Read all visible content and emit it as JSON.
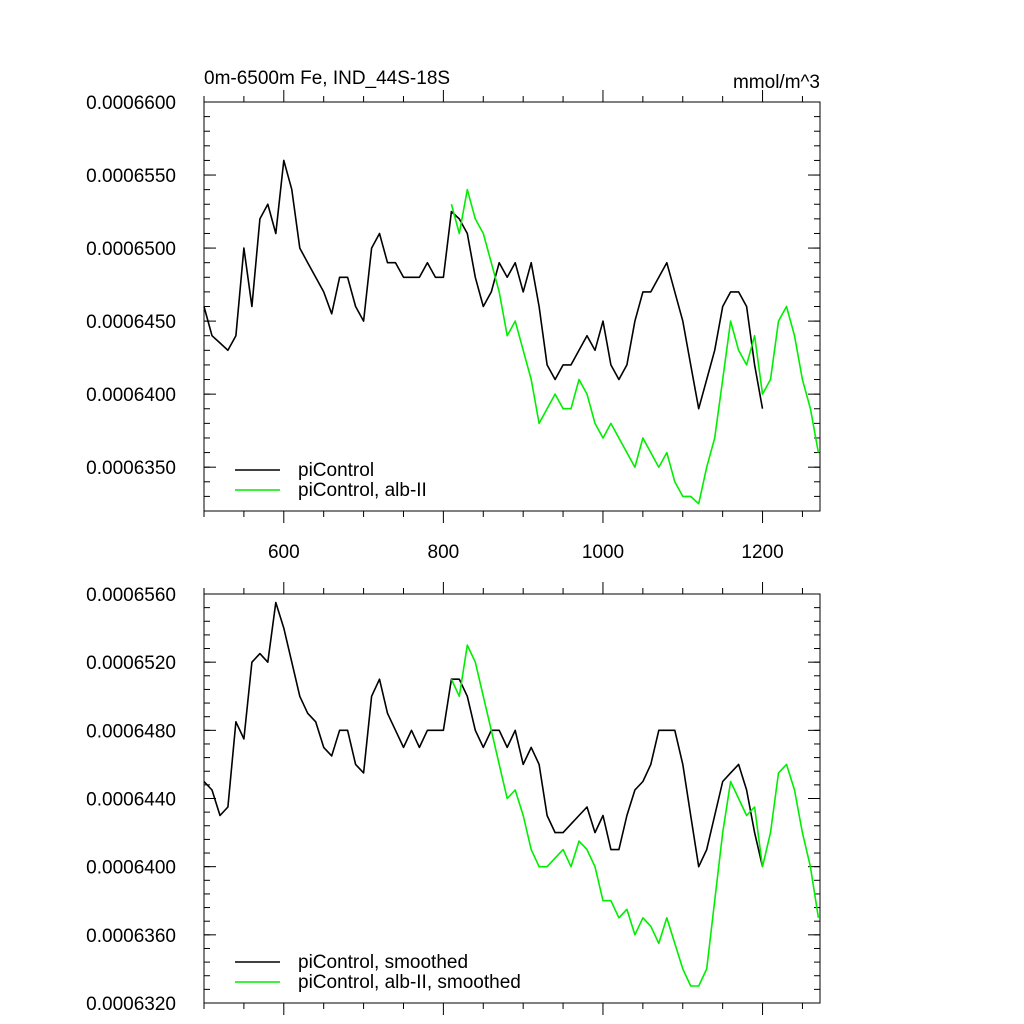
{
  "chart_data": [
    {
      "type": "line",
      "title": "0m-6500m Fe, IND_44S-18S",
      "units": "mmol/m^3",
      "xlim": [
        500,
        1272
      ],
      "ylim": [
        0.000632,
        0.00066
      ],
      "xticks": [
        600,
        800,
        1000,
        1200
      ],
      "xtick_labels": [
        "600",
        "800",
        "1000",
        "1200"
      ],
      "yticks": [
        0.000635,
        0.00064,
        0.000645,
        0.00065,
        0.000655,
        0.00066
      ],
      "ytick_labels": [
        "0.0006350",
        "0.0006400",
        "0.0006450",
        "0.0006500",
        "0.0006550",
        "0.0006600"
      ],
      "legend_position": "bottom-left",
      "series": [
        {
          "name": "piControl",
          "color": "#000000",
          "x": [
            500,
            510,
            520,
            530,
            540,
            550,
            560,
            570,
            580,
            590,
            600,
            610,
            620,
            630,
            640,
            650,
            660,
            670,
            680,
            690,
            700,
            710,
            720,
            730,
            740,
            750,
            760,
            770,
            780,
            790,
            800,
            810,
            820,
            830,
            840,
            850,
            860,
            870,
            880,
            890,
            900,
            910,
            920,
            930,
            940,
            950,
            960,
            970,
            980,
            990,
            1000,
            1010,
            1020,
            1030,
            1040,
            1050,
            1060,
            1070,
            1080,
            1090,
            1100,
            1110,
            1120,
            1130,
            1140,
            1150,
            1160,
            1170,
            1180,
            1190,
            1200
          ],
          "y": [
            0.000646,
            0.000644,
            0.0006435,
            0.000643,
            0.000644,
            0.00065,
            0.000646,
            0.000652,
            0.000653,
            0.000651,
            0.000656,
            0.000654,
            0.00065,
            0.000649,
            0.000648,
            0.000647,
            0.0006455,
            0.000648,
            0.000648,
            0.000646,
            0.000645,
            0.00065,
            0.000651,
            0.000649,
            0.000649,
            0.000648,
            0.000648,
            0.000648,
            0.000649,
            0.000648,
            0.000648,
            0.0006525,
            0.000652,
            0.000651,
            0.000648,
            0.000646,
            0.000647,
            0.000649,
            0.000648,
            0.000649,
            0.000647,
            0.000649,
            0.000646,
            0.000642,
            0.000641,
            0.000642,
            0.000642,
            0.000643,
            0.000644,
            0.000643,
            0.000645,
            0.000642,
            0.000641,
            0.000642,
            0.000645,
            0.000647,
            0.000647,
            0.000648,
            0.000649,
            0.000647,
            0.000645,
            0.000642,
            0.000639,
            0.000641,
            0.000643,
            0.000646,
            0.000647,
            0.000647,
            0.000646,
            0.000642,
            0.000639
          ]
        },
        {
          "name": "piControl, alb-II",
          "color": "#00ee00",
          "x": [
            810,
            820,
            830,
            840,
            850,
            860,
            870,
            880,
            890,
            900,
            910,
            920,
            930,
            940,
            950,
            960,
            970,
            980,
            990,
            1000,
            1010,
            1020,
            1030,
            1040,
            1050,
            1060,
            1070,
            1080,
            1090,
            1100,
            1110,
            1120,
            1130,
            1140,
            1150,
            1160,
            1170,
            1180,
            1190,
            1200,
            1210,
            1220,
            1230,
            1240,
            1250,
            1260,
            1270
          ],
          "y": [
            0.000653,
            0.000651,
            0.000654,
            0.000652,
            0.000651,
            0.000649,
            0.000647,
            0.000644,
            0.000645,
            0.000643,
            0.000641,
            0.000638,
            0.000639,
            0.00064,
            0.000639,
            0.000639,
            0.000641,
            0.00064,
            0.000638,
            0.000637,
            0.000638,
            0.000637,
            0.000636,
            0.000635,
            0.000637,
            0.000636,
            0.000635,
            0.000636,
            0.000634,
            0.000633,
            0.000633,
            0.0006325,
            0.000635,
            0.000637,
            0.000641,
            0.000645,
            0.000643,
            0.000642,
            0.000644,
            0.00064,
            0.000641,
            0.000645,
            0.000646,
            0.000644,
            0.000641,
            0.000639,
            0.000636
          ]
        }
      ]
    },
    {
      "type": "line",
      "xlim": [
        500,
        1272
      ],
      "ylim": [
        0.000632,
        0.000656
      ],
      "xticks": [
        600,
        800,
        1000,
        1200
      ],
      "yticks": [
        0.000632,
        0.000636,
        0.00064,
        0.000644,
        0.000648,
        0.000652,
        0.000656
      ],
      "ytick_labels": [
        "0.0006320",
        "0.0006360",
        "0.0006400",
        "0.0006440",
        "0.0006480",
        "0.0006520",
        "0.0006560"
      ],
      "legend_position": "bottom-left",
      "series": [
        {
          "name": "piControl, smoothed",
          "color": "#000000",
          "x": [
            500,
            510,
            520,
            530,
            540,
            550,
            560,
            570,
            580,
            590,
            600,
            610,
            620,
            630,
            640,
            650,
            660,
            670,
            680,
            690,
            700,
            710,
            720,
            730,
            740,
            750,
            760,
            770,
            780,
            790,
            800,
            810,
            820,
            830,
            840,
            850,
            860,
            870,
            880,
            890,
            900,
            910,
            920,
            930,
            940,
            950,
            960,
            970,
            980,
            990,
            1000,
            1010,
            1020,
            1030,
            1040,
            1050,
            1060,
            1070,
            1080,
            1090,
            1100,
            1110,
            1120,
            1130,
            1140,
            1150,
            1160,
            1170,
            1180,
            1190,
            1200
          ],
          "y": [
            0.000645,
            0.0006445,
            0.000643,
            0.0006435,
            0.0006485,
            0.0006475,
            0.000652,
            0.0006525,
            0.000652,
            0.0006555,
            0.000654,
            0.000652,
            0.00065,
            0.000649,
            0.0006485,
            0.000647,
            0.0006465,
            0.000648,
            0.000648,
            0.000646,
            0.0006455,
            0.00065,
            0.000651,
            0.000649,
            0.000648,
            0.000647,
            0.000648,
            0.000647,
            0.000648,
            0.000648,
            0.000648,
            0.000651,
            0.000651,
            0.00065,
            0.000648,
            0.000647,
            0.000648,
            0.000648,
            0.000647,
            0.000648,
            0.000646,
            0.000647,
            0.000646,
            0.000643,
            0.000642,
            0.000642,
            0.0006425,
            0.000643,
            0.0006435,
            0.000642,
            0.000643,
            0.000641,
            0.000641,
            0.000643,
            0.0006445,
            0.000645,
            0.000646,
            0.000648,
            0.000648,
            0.000648,
            0.000646,
            0.000643,
            0.00064,
            0.000641,
            0.000643,
            0.000645,
            0.0006455,
            0.000646,
            0.0006445,
            0.000642,
            0.00064
          ]
        },
        {
          "name": "piControl, alb-II, smoothed",
          "color": "#00ee00",
          "x": [
            810,
            820,
            830,
            840,
            850,
            860,
            870,
            880,
            890,
            900,
            910,
            920,
            930,
            940,
            950,
            960,
            970,
            980,
            990,
            1000,
            1010,
            1020,
            1030,
            1040,
            1050,
            1060,
            1070,
            1080,
            1090,
            1100,
            1110,
            1120,
            1130,
            1140,
            1150,
            1160,
            1170,
            1180,
            1190,
            1200,
            1210,
            1220,
            1230,
            1240,
            1250,
            1260,
            1270
          ],
          "y": [
            0.000651,
            0.00065,
            0.000653,
            0.000652,
            0.00065,
            0.000648,
            0.000646,
            0.000644,
            0.0006445,
            0.000643,
            0.000641,
            0.00064,
            0.00064,
            0.0006405,
            0.000641,
            0.00064,
            0.0006415,
            0.000641,
            0.00064,
            0.000638,
            0.000638,
            0.000637,
            0.0006375,
            0.000636,
            0.000637,
            0.0006365,
            0.0006355,
            0.000637,
            0.0006355,
            0.000634,
            0.000633,
            0.000633,
            0.000634,
            0.000638,
            0.000642,
            0.000645,
            0.000644,
            0.000643,
            0.0006435,
            0.00064,
            0.000642,
            0.0006455,
            0.000646,
            0.0006445,
            0.000642,
            0.00064,
            0.000637
          ]
        }
      ]
    }
  ]
}
